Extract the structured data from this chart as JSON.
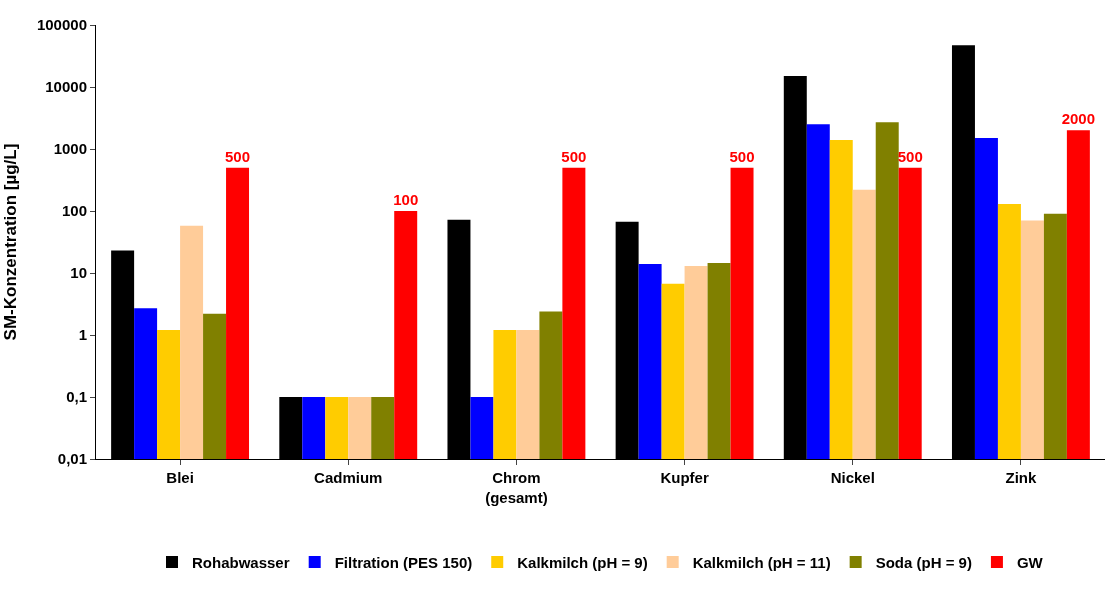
{
  "chart_data": {
    "type": "bar",
    "ylabel": "SM-Konzentration [µg/L]",
    "categories": [
      "Blei",
      "Cadmium",
      "Chrom\n(gesamt)",
      "Kupfer",
      "Nickel",
      "Zink"
    ],
    "log": true,
    "ylim": [
      0.01,
      100000
    ],
    "yticks": [
      {
        "value": 0.01,
        "label": "0,01"
      },
      {
        "value": 0.1,
        "label": "0,1"
      },
      1,
      10,
      100,
      1000,
      10000,
      100000
    ],
    "legend": "bottom",
    "series": [
      {
        "name": "Rohabwasser",
        "color": "#000000",
        "values": [
          23,
          0.1,
          72,
          67,
          15000,
          47000
        ]
      },
      {
        "name": "Filtration (PES 150)",
        "color": "#0000ff",
        "values": [
          2.7,
          0.1,
          0.1,
          14,
          2500,
          1500
        ]
      },
      {
        "name": "Kalkmilch (pH = 9)",
        "color": "#ffcc00",
        "values": [
          1.2,
          0.1,
          1.2,
          6.7,
          1400,
          130
        ]
      },
      {
        "name": "Kalkmilch (pH = 11)",
        "color": "#ffcc99",
        "values": [
          58,
          0.1,
          1.2,
          13,
          220,
          70
        ]
      },
      {
        "name": "Soda (pH = 9)",
        "color": "#808000",
        "values": [
          2.2,
          0.1,
          2.4,
          14.5,
          2700,
          90
        ]
      },
      {
        "name": "GW",
        "color": "#ff0000",
        "values": [
          500,
          100,
          500,
          500,
          500,
          2000
        ],
        "value_labels": [
          "500",
          "100",
          "500",
          "500",
          "500",
          "2000"
        ]
      }
    ]
  }
}
